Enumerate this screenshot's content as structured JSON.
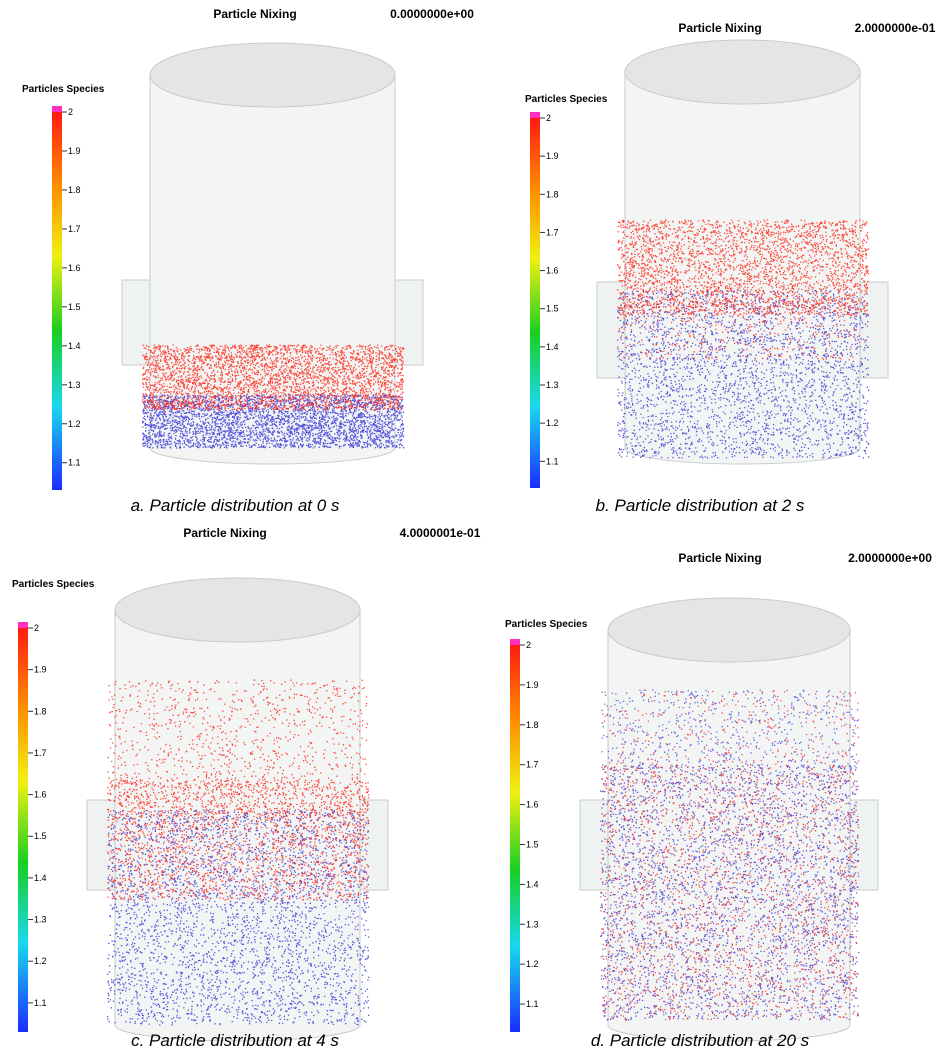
{
  "panels": [
    {
      "title": "Particle Nixing",
      "time": "0.0000000e+00",
      "legend_title": "Particles Species",
      "colorbar_ticks": [
        2,
        1.9,
        1.8,
        1.7,
        1.6,
        1.5,
        1.4,
        1.3,
        1.2,
        1.1
      ],
      "caption": "a. Particle distribution at 0 s"
    },
    {
      "title": "Particle Nixing",
      "time": "2.0000000e-01",
      "legend_title": "Particles Species",
      "colorbar_ticks": [
        2,
        1.9,
        1.8,
        1.7,
        1.6,
        1.5,
        1.4,
        1.3,
        1.2,
        1.1
      ],
      "caption": "b. Particle distribution at 2 s"
    },
    {
      "title": "Particle Nixing",
      "time": "4.0000001e-01",
      "legend_title": "Particles Species",
      "colorbar_ticks": [
        2,
        1.9,
        1.8,
        1.7,
        1.6,
        1.5,
        1.4,
        1.3,
        1.2,
        1.1
      ],
      "caption": "c. Particle distribution at 4 s"
    },
    {
      "title": "Particle Nixing",
      "time": "2.0000000e+00",
      "legend_title": "Particles Species",
      "colorbar_ticks": [
        2,
        1.9,
        1.8,
        1.7,
        1.6,
        1.5,
        1.4,
        1.3,
        1.2,
        1.1
      ],
      "caption": "d. Particle distribution at 20 s"
    }
  ]
}
